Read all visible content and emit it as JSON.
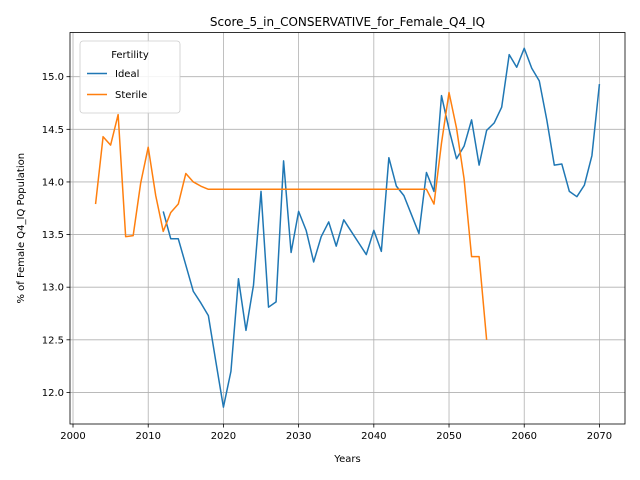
{
  "chart_data": {
    "type": "line",
    "title": "Score_5_in_CONSERVATIVE_for_Female_Q4_IQ",
    "xlabel": "Years",
    "ylabel": "% of Female Q4_IQ Population",
    "xlim": [
      1999.6,
      2073.4
    ],
    "ylim": [
      11.7,
      15.42
    ],
    "xticks": [
      2000,
      2010,
      2020,
      2030,
      2040,
      2050,
      2060,
      2070
    ],
    "yticks": [
      12.0,
      12.5,
      13.0,
      13.5,
      14.0,
      14.5,
      15.0
    ],
    "grid": true,
    "legend": {
      "title": "Fertility",
      "position": "top-left"
    },
    "series": [
      {
        "name": "Ideal",
        "color": "#1f77b4",
        "x": [
          2012,
          2013,
          2014,
          2015,
          2016,
          2017,
          2018,
          2019,
          2020,
          2021,
          2022,
          2023,
          2024,
          2025,
          2026,
          2027,
          2028,
          2029,
          2030,
          2031,
          2032,
          2033,
          2034,
          2035,
          2036,
          2037,
          2038,
          2039,
          2040,
          2041,
          2042,
          2043,
          2044,
          2045,
          2046,
          2047,
          2048,
          2049,
          2050,
          2051,
          2052,
          2053,
          2054,
          2055,
          2056,
          2057,
          2058,
          2059,
          2060,
          2061,
          2062,
          2063,
          2064,
          2065,
          2066,
          2067,
          2068,
          2069,
          2070
        ],
        "y": [
          13.72,
          13.46,
          13.46,
          13.21,
          12.96,
          12.85,
          12.73,
          12.29,
          11.86,
          12.2,
          13.08,
          12.59,
          13.02,
          13.91,
          12.81,
          12.86,
          14.2,
          13.33,
          13.72,
          13.54,
          13.24,
          13.48,
          13.62,
          13.39,
          13.64,
          13.53,
          13.42,
          13.31,
          13.54,
          13.34,
          14.23,
          13.96,
          13.87,
          13.69,
          13.51,
          14.09,
          13.91,
          14.82,
          14.5,
          14.22,
          14.34,
          14.59,
          14.16,
          14.49,
          14.56,
          14.71,
          15.21,
          15.09,
          15.27,
          15.08,
          14.96,
          14.59,
          14.16,
          14.17,
          13.91,
          13.86,
          13.97,
          14.25,
          14.93
        ]
      },
      {
        "name": "Sterile",
        "color": "#ff7f0e",
        "x": [
          2003,
          2004,
          2005,
          2006,
          2007,
          2008,
          2009,
          2010,
          2011,
          2012,
          2013,
          2014,
          2015,
          2016,
          2017,
          2018,
          2019,
          2020,
          2021,
          2022,
          2023,
          2024,
          2025,
          2026,
          2027,
          2028,
          2029,
          2030,
          2031,
          2032,
          2033,
          2034,
          2035,
          2036,
          2037,
          2038,
          2039,
          2040,
          2041,
          2042,
          2043,
          2044,
          2045,
          2046,
          2047,
          2048,
          2049,
          2050,
          2051,
          2052,
          2053,
          2054,
          2055
        ],
        "y": [
          13.79,
          14.43,
          14.35,
          14.64,
          13.48,
          13.49,
          13.99,
          14.33,
          13.87,
          13.53,
          13.71,
          13.79,
          14.08,
          14.0,
          13.96,
          13.93,
          13.93,
          13.93,
          13.93,
          13.93,
          13.93,
          13.93,
          13.93,
          13.93,
          13.93,
          13.93,
          13.93,
          13.93,
          13.93,
          13.93,
          13.93,
          13.93,
          13.93,
          13.93,
          13.93,
          13.93,
          13.93,
          13.93,
          13.93,
          13.93,
          13.93,
          13.93,
          13.93,
          13.93,
          13.93,
          13.79,
          14.37,
          14.85,
          14.51,
          14.03,
          13.29,
          13.29,
          12.5
        ]
      }
    ]
  }
}
